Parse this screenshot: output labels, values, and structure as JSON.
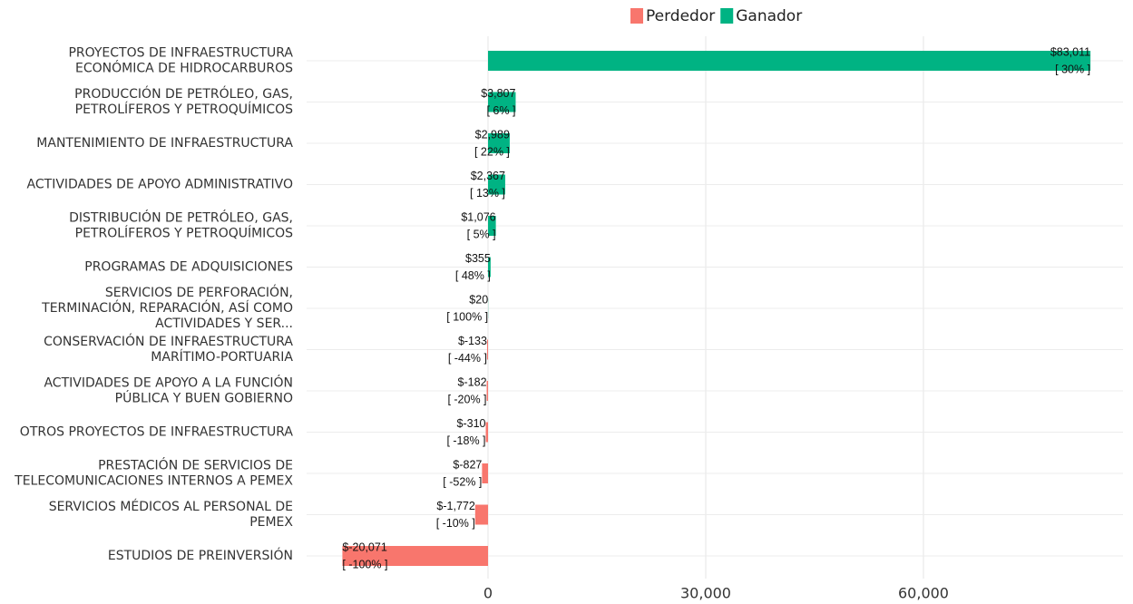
{
  "chart_data": {
    "type": "hbar",
    "categories": [
      [
        "PROYECTOS DE INFRAESTRUCTURA",
        "ECONÓMICA DE HIDROCARBUROS"
      ],
      [
        "PRODUCCIÓN DE PETRÓLEO, GAS,",
        "PETROLÍFEROS Y PETROQUÍMICOS"
      ],
      [
        "MANTENIMIENTO DE INFRAESTRUCTURA"
      ],
      [
        "ACTIVIDADES DE APOYO ADMINISTRATIVO"
      ],
      [
        "DISTRIBUCIÓN DE PETRÓLEO, GAS,",
        "PETROLÍFEROS Y PETROQUÍMICOS"
      ],
      [
        "PROGRAMAS DE ADQUISICIONES"
      ],
      [
        "SERVICIOS DE PERFORACIÓN,",
        "TERMINACIÓN, REPARACIÓN, ASÍ COMO",
        "ACTIVIDADES Y SER..."
      ],
      [
        "CONSERVACIÓN DE INFRAESTRUCTURA",
        "MARÍTIMO-PORTUARIA"
      ],
      [
        "ACTIVIDADES DE APOYO A LA FUNCIÓN",
        "PÚBLICA Y BUEN GOBIERNO"
      ],
      [
        "OTROS PROYECTOS DE INFRAESTRUCTURA"
      ],
      [
        "PRESTACIÓN DE SERVICIOS DE",
        "TELECOMUNICACIONES INTERNOS A PEMEX"
      ],
      [
        "SERVICIOS MÉDICOS AL PERSONAL DE",
        "PEMEX"
      ],
      [
        "ESTUDIOS DE PREINVERSIÓN"
      ]
    ],
    "series": [
      {
        "name": "Perdedor",
        "color": "#F8766D",
        "values": [
          null,
          null,
          null,
          null,
          null,
          null,
          null,
          -133,
          -182,
          -310,
          -827,
          -1772,
          -20071
        ],
        "value_labels": [
          null,
          null,
          null,
          null,
          null,
          null,
          null,
          "$-133",
          "$-182",
          "$-310",
          "$-827",
          "$-1,772",
          "$-20,071"
        ],
        "percent_labels": [
          null,
          null,
          null,
          null,
          null,
          null,
          null,
          "[ -44% ]",
          "[ -20% ]",
          "[ -18% ]",
          "[ -52% ]",
          "[ -10% ]",
          "[ -100% ]"
        ]
      },
      {
        "name": "Ganador",
        "color": "#00B383",
        "values": [
          83011,
          3807,
          2989,
          2367,
          1076,
          355,
          20,
          null,
          null,
          null,
          null,
          null,
          null
        ],
        "value_labels": [
          "$83,011",
          "$3,807",
          "$2,989",
          "$2,367",
          "$1,076",
          "$355",
          "$20",
          null,
          null,
          null,
          null,
          null,
          null
        ],
        "percent_labels": [
          "[ 30% ]",
          "[ 6% ]",
          "[ 22% ]",
          "[ 13% ]",
          "[ 5% ]",
          "[ 48% ]",
          "[ 100% ]",
          null,
          null,
          null,
          null,
          null,
          null
        ]
      }
    ],
    "xlim": [
      -25000,
      87500
    ],
    "xticks": [
      0,
      {
        "value": 30000,
        "label": "30,000"
      },
      {
        "value": 60000,
        "label": "60,000"
      }
    ],
    "grid": true,
    "legend": "top"
  }
}
